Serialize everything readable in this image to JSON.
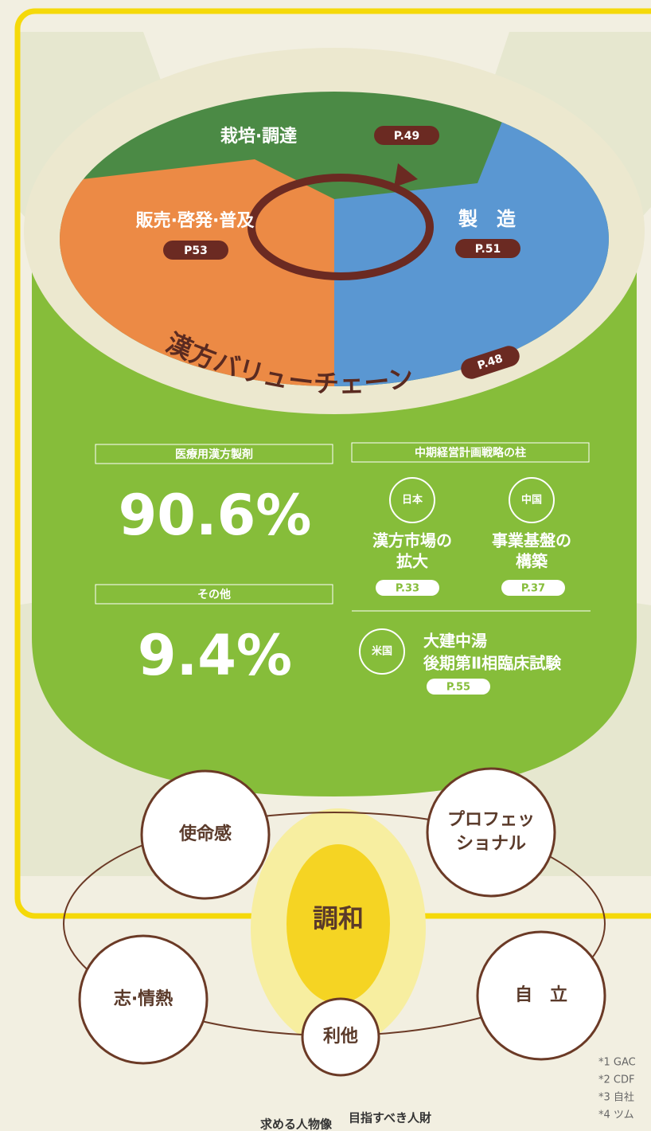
{
  "value_chain": {
    "title": "漢方バリューチェーン",
    "page": "P.48",
    "stages": [
      {
        "label": "栽培·調達",
        "page": "P.49"
      },
      {
        "label": "製　造",
        "page": "P.51"
      },
      {
        "label": "販売·啓発·普及",
        "page": "P53"
      }
    ]
  },
  "share": [
    {
      "label": "医療用漢方製剤",
      "value": "90.6%"
    },
    {
      "label": "その他",
      "value": "9.4%"
    }
  ],
  "strategy": {
    "title": "中期経営計画戦略の柱",
    "pillars": [
      {
        "region": "日本",
        "lines": [
          "漢方市場の",
          "拡大"
        ],
        "page": "P.33"
      },
      {
        "region": "中国",
        "lines": [
          "事業基盤の",
          "構築"
        ],
        "page": "P.37"
      },
      {
        "region": "米国",
        "lines": [
          "大建中湯",
          "後期第Ⅱ相臨床試験"
        ],
        "page": "P.55"
      }
    ]
  },
  "values": {
    "center": "調和",
    "items": [
      "使命感",
      [
        "プロフェッ",
        "ショナル"
      ],
      "志·情熱",
      "自　立",
      "利他"
    ]
  },
  "captions": [
    "求める人物像",
    "目指すべき人財"
  ],
  "footnotes": [
    "*1 GAC",
    "*2 CDF",
    "*3 自社",
    "*4 ツム"
  ]
}
